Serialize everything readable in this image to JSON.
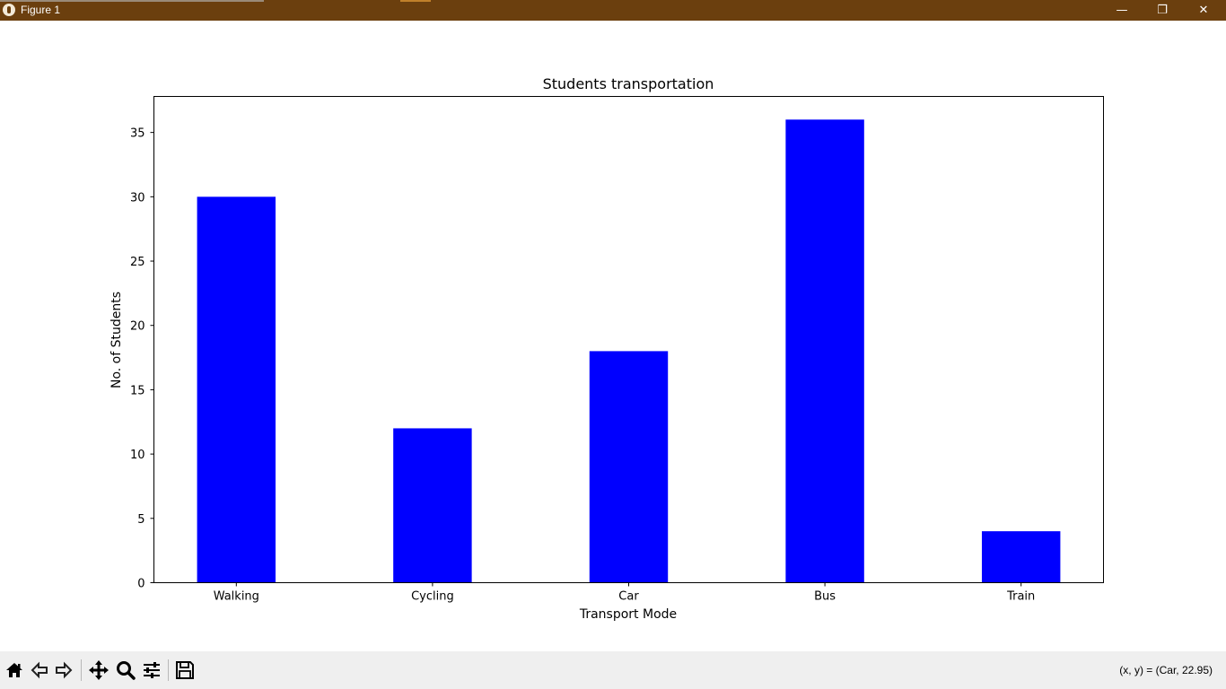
{
  "window": {
    "title": "Figure 1",
    "minimize_glyph": "—",
    "restore_glyph": "❐",
    "close_glyph": "✕"
  },
  "toolbar": {
    "coords_text": "(x, y) = (Car, 22.95)",
    "buttons": [
      "home-icon",
      "back-icon",
      "forward-icon",
      "pan-icon",
      "zoom-icon",
      "configure-icon",
      "save-icon"
    ]
  },
  "colors": {
    "titlebar": "#6b3f0e",
    "bar": "#0000ff",
    "toolbar": "#efefef"
  },
  "chart_data": {
    "type": "bar",
    "title": "Students transportation",
    "xlabel": "Transport Mode",
    "ylabel": "No. of Students",
    "categories": [
      "Walking",
      "Cycling",
      "Car",
      "Bus",
      "Train"
    ],
    "values": [
      30,
      12,
      18,
      36,
      4
    ],
    "ylim": [
      0,
      37.8
    ],
    "yticks": [
      0,
      5,
      10,
      15,
      20,
      25,
      30,
      35
    ],
    "grid": false,
    "legend": null,
    "bar_color": "#0000ff"
  }
}
